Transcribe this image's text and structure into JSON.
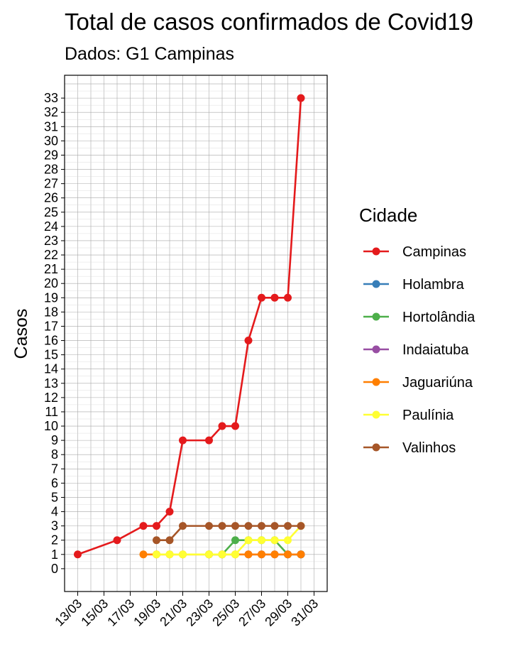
{
  "chart_data": {
    "type": "line",
    "title": "Total de casos confirmados de Covid19",
    "subtitle": "Dados: G1 Campinas",
    "xlabel": "",
    "ylabel": "Casos",
    "x_range": [
      "2020-03-12",
      "2020-04-01"
    ],
    "ylim": [
      -1.6,
      34.6
    ],
    "grid": true,
    "x_ticks": [
      "2020-03-13",
      "2020-03-15",
      "2020-03-17",
      "2020-03-19",
      "2020-03-21",
      "2020-03-23",
      "2020-03-25",
      "2020-03-27",
      "2020-03-29",
      "2020-03-31"
    ],
    "x_tick_labels": [
      "13/03",
      "15/03",
      "17/03",
      "19/03",
      "21/03",
      "23/03",
      "25/03",
      "27/03",
      "29/03",
      "31/03"
    ],
    "y_ticks": [
      0,
      1,
      2,
      3,
      4,
      5,
      6,
      7,
      8,
      9,
      10,
      11,
      12,
      13,
      14,
      15,
      16,
      17,
      18,
      19,
      20,
      21,
      22,
      23,
      24,
      25,
      26,
      27,
      28,
      29,
      30,
      31,
      32,
      33
    ],
    "legend": {
      "title": "Cidade",
      "position": "right"
    },
    "series": [
      {
        "name": "Campinas",
        "color": "#E41A1C",
        "x": [
          "2020-03-13",
          "2020-03-16",
          "2020-03-18",
          "2020-03-19",
          "2020-03-20",
          "2020-03-21",
          "2020-03-23",
          "2020-03-24",
          "2020-03-25",
          "2020-03-26",
          "2020-03-27",
          "2020-03-28",
          "2020-03-29",
          "2020-03-30"
        ],
        "y": [
          1,
          2,
          3,
          3,
          4,
          9,
          9,
          10,
          10,
          16,
          19,
          19,
          19,
          33
        ]
      },
      {
        "name": "Holambra",
        "color": "#377EB8",
        "x": [
          "2020-03-30"
        ],
        "y": [
          1
        ]
      },
      {
        "name": "Hortolândia",
        "color": "#4DAF4A",
        "x": [
          "2020-03-23",
          "2020-03-24",
          "2020-03-25",
          "2020-03-26",
          "2020-03-27",
          "2020-03-28",
          "2020-03-29",
          "2020-03-30"
        ],
        "y": [
          1,
          1,
          2,
          2,
          2,
          2,
          1,
          1
        ]
      },
      {
        "name": "Indaiatuba",
        "color": "#984EA3",
        "x": [
          "2020-03-26",
          "2020-03-27",
          "2020-03-28",
          "2020-03-29",
          "2020-03-30"
        ],
        "y": [
          1,
          1,
          1,
          1,
          1
        ]
      },
      {
        "name": "Jaguariúna",
        "color": "#FF7F00",
        "x": [
          "2020-03-18",
          "2020-03-19",
          "2020-03-20",
          "2020-03-21",
          "2020-03-23",
          "2020-03-24",
          "2020-03-25",
          "2020-03-26",
          "2020-03-27",
          "2020-03-28",
          "2020-03-29",
          "2020-03-30"
        ],
        "y": [
          1,
          1,
          1,
          1,
          1,
          1,
          1,
          1,
          1,
          1,
          1,
          1
        ]
      },
      {
        "name": "Paulínia",
        "color": "#FFFF33",
        "x": [
          "2020-03-19",
          "2020-03-20",
          "2020-03-21",
          "2020-03-23",
          "2020-03-24",
          "2020-03-25",
          "2020-03-26",
          "2020-03-27",
          "2020-03-28",
          "2020-03-29",
          "2020-03-30"
        ],
        "y": [
          1,
          1,
          1,
          1,
          1,
          1,
          2,
          2,
          2,
          2,
          3
        ]
      },
      {
        "name": "Valinhos",
        "color": "#A65628",
        "x": [
          "2020-03-19",
          "2020-03-20",
          "2020-03-21",
          "2020-03-23",
          "2020-03-24",
          "2020-03-25",
          "2020-03-26",
          "2020-03-27",
          "2020-03-28",
          "2020-03-29",
          "2020-03-30"
        ],
        "y": [
          2,
          2,
          3,
          3,
          3,
          3,
          3,
          3,
          3,
          3,
          3
        ]
      }
    ]
  }
}
